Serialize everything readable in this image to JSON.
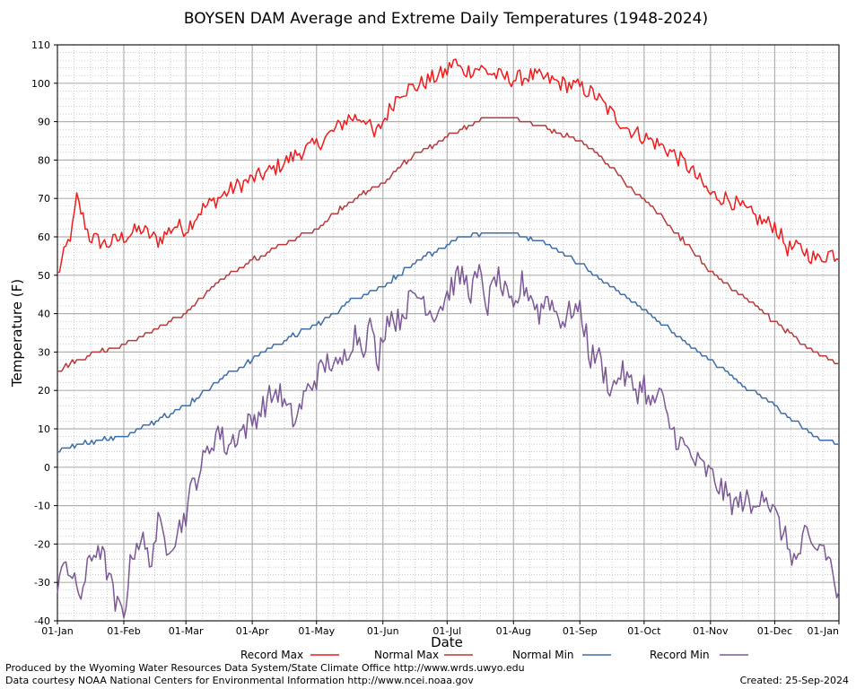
{
  "chart_data": {
    "type": "line",
    "title": "BOYSEN DAM Average and Extreme Daily Temperatures (1948-2024)",
    "xlabel": "Date",
    "ylabel": "Temperature (F)",
    "ylim": [
      -40,
      110
    ],
    "yticks": [
      -40,
      -30,
      -20,
      -10,
      0,
      10,
      20,
      30,
      40,
      50,
      60,
      70,
      80,
      90,
      100,
      110
    ],
    "x_unit": "day of year",
    "xlim": [
      1,
      366
    ],
    "xticks": [
      {
        "day": 1,
        "label": "01-Jan"
      },
      {
        "day": 32,
        "label": "01-Feb"
      },
      {
        "day": 61,
        "label": "01-Mar"
      },
      {
        "day": 92,
        "label": "01-Apr"
      },
      {
        "day": 122,
        "label": "01-May"
      },
      {
        "day": 153,
        "label": "01-Jun"
      },
      {
        "day": 183,
        "label": "01-Jul"
      },
      {
        "day": 214,
        "label": "01-Aug"
      },
      {
        "day": 245,
        "label": "01-Sep"
      },
      {
        "day": 275,
        "label": "01-Oct"
      },
      {
        "day": 306,
        "label": "01-Nov"
      },
      {
        "day": 336,
        "label": "01-Dec"
      },
      {
        "day": 366,
        "label": "01-Jan"
      }
    ],
    "grid": true,
    "legend_position": "bottom",
    "series": [
      {
        "name": "Record Max",
        "color": "#ee1c1c",
        "x": [
          1,
          8,
          10,
          16,
          24,
          32,
          40,
          48,
          56,
          61,
          68,
          76,
          84,
          92,
          100,
          106,
          114,
          122,
          129,
          137,
          145,
          149,
          153,
          158,
          161,
          168,
          175,
          183,
          186,
          190,
          198,
          206,
          214,
          222,
          230,
          236,
          245,
          252,
          260,
          268,
          275,
          282,
          288,
          296,
          306,
          314,
          322,
          330,
          336,
          342,
          348,
          356,
          362,
          366
        ],
        "y": [
          50,
          62,
          70,
          60,
          58,
          60,
          62,
          59,
          63,
          62,
          67,
          70,
          73,
          75,
          77,
          79,
          82,
          84,
          87,
          91,
          91,
          86,
          90,
          95,
          98,
          99,
          101,
          103,
          106,
          103,
          104,
          102,
          101,
          102,
          101,
          100,
          99,
          97,
          92,
          88,
          86,
          84,
          82,
          78,
          71,
          70,
          67,
          64,
          63,
          57,
          57,
          54,
          56,
          55
        ]
      },
      {
        "name": "Normal Max",
        "color": "#b83a3a",
        "x": [
          1,
          10,
          20,
          32,
          40,
          50,
          61,
          70,
          80,
          92,
          100,
          110,
          122,
          130,
          140,
          153,
          160,
          170,
          183,
          190,
          200,
          214,
          220,
          230,
          245,
          252,
          260,
          268,
          275,
          285,
          295,
          306,
          315,
          325,
          336,
          345,
          355,
          366
        ],
        "y": [
          25,
          28,
          30,
          32,
          34,
          37,
          40,
          45,
          50,
          54,
          56,
          59,
          62,
          66,
          70,
          74,
          78,
          82,
          86,
          88,
          91,
          91,
          90,
          88,
          85,
          82,
          78,
          73,
          70,
          64,
          58,
          51,
          47,
          43,
          38,
          34,
          30,
          27
        ]
      },
      {
        "name": "Normal Min",
        "color": "#3d6ea8",
        "x": [
          1,
          10,
          20,
          32,
          40,
          50,
          61,
          70,
          80,
          92,
          100,
          110,
          122,
          130,
          140,
          153,
          160,
          170,
          183,
          190,
          200,
          214,
          220,
          230,
          245,
          252,
          260,
          268,
          275,
          285,
          295,
          306,
          315,
          325,
          336,
          345,
          355,
          366
        ],
        "y": [
          4,
          6,
          7,
          8,
          10,
          13,
          16,
          20,
          24,
          28,
          31,
          34,
          37,
          40,
          44,
          47,
          50,
          54,
          58,
          60,
          61,
          61,
          60,
          58,
          53,
          50,
          47,
          44,
          41,
          37,
          32,
          28,
          24,
          20,
          16,
          12,
          8,
          6
        ]
      },
      {
        "name": "Record Min",
        "color": "#7b5896",
        "x": [
          1,
          4,
          8,
          12,
          16,
          20,
          25,
          28,
          32,
          36,
          40,
          44,
          48,
          52,
          56,
          61,
          64,
          68,
          72,
          76,
          80,
          84,
          88,
          92,
          96,
          100,
          104,
          108,
          112,
          116,
          120,
          124,
          128,
          132,
          136,
          140,
          144,
          148,
          150,
          153,
          156,
          160,
          164,
          168,
          172,
          176,
          180,
          183,
          186,
          190,
          194,
          198,
          202,
          206,
          210,
          214,
          218,
          222,
          226,
          230,
          234,
          238,
          242,
          245,
          248,
          250,
          253,
          256,
          260,
          264,
          268,
          272,
          275,
          278,
          282,
          286,
          290,
          294,
          298,
          302,
          306,
          310,
          314,
          318,
          322,
          326,
          330,
          334,
          338,
          342,
          346,
          350,
          354,
          358,
          362,
          366
        ],
        "y": [
          -35,
          -22,
          -30,
          -33,
          -25,
          -20,
          -28,
          -36,
          -38,
          -22,
          -18,
          -25,
          -15,
          -20,
          -18,
          -12,
          -5,
          0,
          5,
          10,
          5,
          8,
          10,
          12,
          15,
          18,
          20,
          15,
          12,
          18,
          22,
          25,
          28,
          25,
          30,
          35,
          32,
          38,
          25,
          35,
          40,
          38,
          42,
          45,
          44,
          40,
          42,
          45,
          48,
          50,
          46,
          50,
          42,
          50,
          45,
          40,
          48,
          45,
          40,
          45,
          40,
          38,
          42,
          40,
          35,
          28,
          30,
          25,
          20,
          25,
          22,
          20,
          22,
          15,
          20,
          12,
          8,
          5,
          2,
          0,
          -2,
          -5,
          -8,
          -10,
          -8,
          -12,
          -5,
          -10,
          -15,
          -20,
          -25,
          -18,
          -22,
          -20,
          -25,
          -35
        ]
      }
    ]
  },
  "footer": {
    "line1": "Produced by the Wyoming Water Resources Data System/State Climate Office http://www.wrds.uwyo.edu",
    "line2": "Data courtesy NOAA National Centers for Environmental Information http://www.ncei.noaa.gov",
    "created": "Created:  25-Sep-2024"
  }
}
